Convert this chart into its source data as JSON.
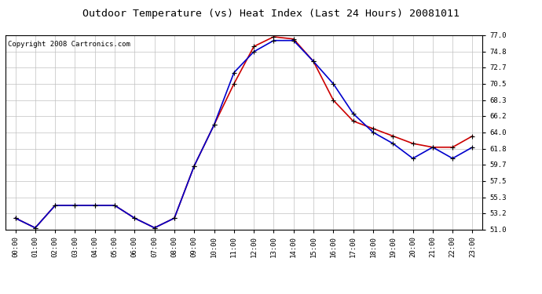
{
  "title": "Outdoor Temperature (vs) Heat Index (Last 24 Hours) 20081011",
  "copyright": "Copyright 2008 Cartronics.com",
  "hours": [
    "00:00",
    "01:00",
    "02:00",
    "03:00",
    "04:00",
    "05:00",
    "06:00",
    "07:00",
    "08:00",
    "09:00",
    "10:00",
    "11:00",
    "12:00",
    "13:00",
    "14:00",
    "15:00",
    "16:00",
    "17:00",
    "18:00",
    "19:00",
    "20:00",
    "21:00",
    "22:00",
    "23:00"
  ],
  "temp": [
    52.5,
    51.2,
    54.2,
    54.2,
    54.2,
    54.2,
    52.5,
    51.2,
    52.5,
    59.5,
    65.0,
    70.5,
    75.5,
    76.8,
    76.5,
    73.5,
    68.3,
    65.5,
    64.5,
    63.5,
    62.5,
    62.0,
    62.0,
    63.5
  ],
  "heat_index": [
    52.5,
    51.2,
    54.2,
    54.2,
    54.2,
    54.2,
    52.5,
    51.2,
    52.5,
    59.5,
    65.0,
    72.0,
    74.8,
    76.3,
    76.3,
    73.5,
    70.5,
    66.5,
    64.0,
    62.5,
    60.5,
    62.0,
    60.5,
    62.0
  ],
  "temp_color": "#cc0000",
  "heat_index_color": "#0000cc",
  "ylim_min": 51.0,
  "ylim_max": 77.0,
  "yticks": [
    51.0,
    53.2,
    55.3,
    57.5,
    59.7,
    61.8,
    64.0,
    66.2,
    68.3,
    70.5,
    72.7,
    74.8,
    77.0
  ],
  "background_color": "#ffffff",
  "plot_bg_color": "#ffffff",
  "grid_color": "#c0c0c0",
  "title_fontsize": 9.5,
  "copyright_fontsize": 6.5,
  "tick_fontsize": 6.5,
  "line_width": 1.2,
  "marker_size": 5
}
